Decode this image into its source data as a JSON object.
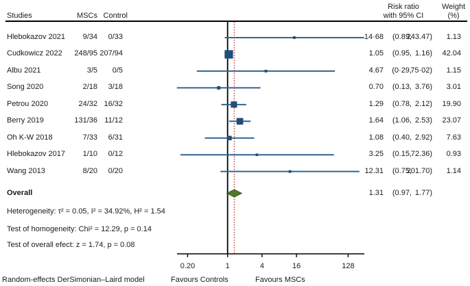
{
  "header": {
    "studies": "Studies",
    "mscs": "MSCs",
    "control": "Control",
    "risk_ratio_line1": "Risk ratio",
    "risk_ratio_line2": "with 95% CI",
    "weight_line1": "Weight",
    "weight_line2": "(%)"
  },
  "studies": [
    {
      "name": "Hlebokazov 2021",
      "mscs": "9/34",
      "control": "0/33",
      "est": "14·68",
      "ci_lo": "(0.89,",
      "ci_hi": "243.47)",
      "weight": "1.13"
    },
    {
      "name": "Cudkowicz 2022",
      "mscs": "248/95",
      "control": "207/94",
      "est": "1.05",
      "ci_lo": "(0.95,",
      "ci_hi": "1.16)",
      "weight": "42.04"
    },
    {
      "name": "Albu 2021",
      "mscs": "3/5",
      "control": "0/5",
      "est": "4.67",
      "ci_lo": "(0·29,",
      "ci_hi": "75·02)",
      "weight": "1.15"
    },
    {
      "name": "Song 2020",
      "mscs": "2/18",
      "control": "3/18",
      "est": "0.70",
      "ci_lo": "(0.13,",
      "ci_hi": "3.76)",
      "weight": "3.01"
    },
    {
      "name": "Petrou 2020",
      "mscs": "24/32",
      "control": "16/32",
      "est": "1.29",
      "ci_lo": "(0.78,",
      "ci_hi": "2.12)",
      "weight": "19.90"
    },
    {
      "name": "Berry 2019",
      "mscs": "131/36",
      "control": "11/12",
      "est": "1.64",
      "ci_lo": "(1.06,",
      "ci_hi": "2.53)",
      "weight": "23.07"
    },
    {
      "name": "Oh K-W 2018",
      "mscs": "7/33",
      "control": "6/31",
      "est": "1.08",
      "ci_lo": "(0.40,",
      "ci_hi": "2.92)",
      "weight": "7.63"
    },
    {
      "name": "Hlebokazov 2017",
      "mscs": "1/10",
      "control": "0/12",
      "est": "3.25",
      "ci_lo": "(0.15,",
      "ci_hi": "72.36)",
      "weight": "0.93"
    },
    {
      "name": "Wang 2013",
      "mscs": "8/20",
      "control": "0/20",
      "est": "12.31",
      "ci_lo": "(0.75,",
      "ci_hi": "201.70)",
      "weight": "1.14"
    }
  ],
  "overall": {
    "label": "Overall",
    "est": "1.31",
    "ci_lo": "(0.97,",
    "ci_hi": "1.77)"
  },
  "stats": {
    "heterogeneity": "Heterogeneity: τ² = 0.05, I² = 34.92%, H² = 1.54",
    "homogeneity": "Test of homogeneity: Chi² = 12.29, p = 0.14",
    "overall_effect": "Test of overall efect: z = 1.74, p = 0.08"
  },
  "footer": {
    "model_note": "Random-effects DerSimonian–Laird model",
    "favours_left": "Favours Controls",
    "favours_right": "Favours MSCs"
  },
  "chart_data": {
    "type": "forest",
    "x_scale": "log2",
    "x_ticks": [
      0.2,
      1,
      4,
      16,
      128
    ],
    "x_tick_labels": [
      "0.20",
      "1",
      "4",
      "16",
      "128"
    ],
    "null_value": 1,
    "xlim": [
      0.13,
      243.47
    ],
    "overall": {
      "rr": 1.31,
      "lo": 0.97,
      "hi": 1.77
    },
    "series": [
      {
        "study": "Hlebokazov 2021",
        "rr": 14.68,
        "lo": 0.89,
        "hi": 243.47,
        "weight": 1.13
      },
      {
        "study": "Cudkowicz 2022",
        "rr": 1.05,
        "lo": 0.95,
        "hi": 1.16,
        "weight": 42.04
      },
      {
        "study": "Albu 2021",
        "rr": 4.67,
        "lo": 0.29,
        "hi": 75.02,
        "weight": 1.15
      },
      {
        "study": "Song 2020",
        "rr": 0.7,
        "lo": 0.13,
        "hi": 3.76,
        "weight": 3.01
      },
      {
        "study": "Petrou 2020",
        "rr": 1.29,
        "lo": 0.78,
        "hi": 2.12,
        "weight": 19.9
      },
      {
        "study": "Berry 2019",
        "rr": 1.64,
        "lo": 1.06,
        "hi": 2.53,
        "weight": 23.07
      },
      {
        "study": "Oh K-W 2018",
        "rr": 1.08,
        "lo": 0.4,
        "hi": 2.92,
        "weight": 7.63
      },
      {
        "study": "Hlebokazov 2017",
        "rr": 3.25,
        "lo": 0.15,
        "hi": 72.36,
        "weight": 0.93
      },
      {
        "study": "Wang 2013",
        "rr": 12.31,
        "lo": 0.75,
        "hi": 201.7,
        "weight": 1.14
      }
    ],
    "colors": {
      "square": "#1f4e79",
      "ci_line": "#31648f",
      "diamond_fill": "#4e7b29",
      "diamond_stroke": "#3a5c1f",
      "null_line": "#000000",
      "overall_dotted_line": "#c4554d"
    }
  }
}
